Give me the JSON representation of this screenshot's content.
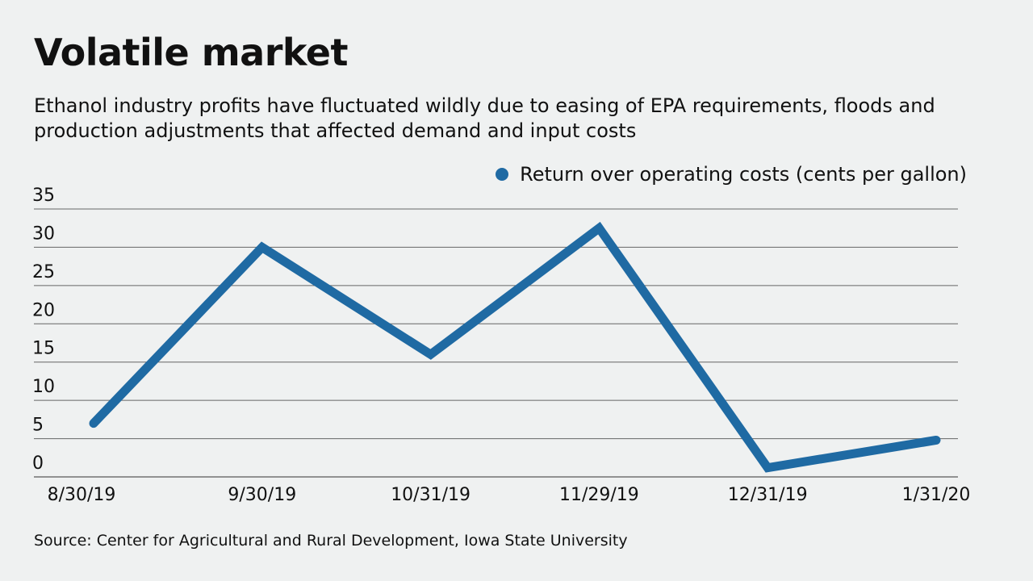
{
  "chart_data": {
    "type": "line",
    "title": "Volatile market",
    "subtitle": "Ethanol industry profits have fluctuated wildly due to easing of EPA requirements, floods and production adjustments that affected demand and input costs",
    "categories": [
      "8/30/19",
      "9/30/19",
      "10/31/19",
      "11/29/19",
      "12/31/19",
      "1/31/20"
    ],
    "series": [
      {
        "name": "Return over operating costs (cents per gallon)",
        "values": [
          7,
          30,
          16,
          32.5,
          1.2,
          4.8
        ],
        "color": "#1f6aa3"
      }
    ],
    "ylim": [
      0,
      35
    ],
    "yticks": [
      0,
      5,
      10,
      15,
      20,
      25,
      30,
      35
    ],
    "grid": true,
    "legend": "top-right",
    "source": "Source: Center for Agricultural and Rural Development, Iowa State University"
  }
}
